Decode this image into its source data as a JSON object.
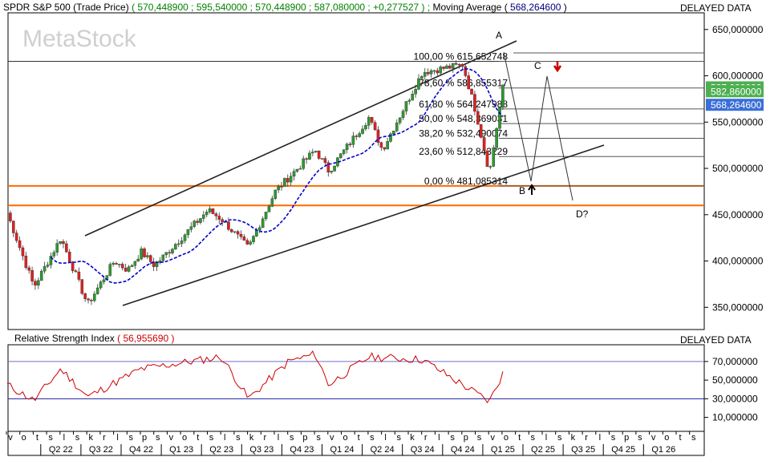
{
  "header": {
    "title": "SPDR S&P 500 (Trade Price)",
    "open": "570,448900",
    "high": "595,540000",
    "low": "570,448900",
    "close": "587,080000",
    "change": "+0,277527",
    "ma_label": "Moving Average",
    "ma_value": "568,264600",
    "delayed": "DELAYED DATA"
  },
  "watermark": "MetaStock",
  "price_axis": {
    "ticks": [
      "650,000000",
      "600,000000",
      "550,000000",
      "500,000000",
      "450,000000",
      "400,000000",
      "350,000000"
    ],
    "tick_values": [
      650,
      600,
      550,
      500,
      450,
      400,
      350
    ],
    "range": [
      326,
      668
    ],
    "badge_close": "587,080000",
    "badge_close_value": 587.08,
    "badge_last": "582,860000",
    "badge_last_value": 582.86,
    "badge_ma": "568,264600",
    "badge_ma_value": 568.2646
  },
  "fib": [
    {
      "label": "100,00 % 615,652748",
      "value": 615.652748
    },
    {
      "label": "78,60 % 586,855317",
      "value": 586.855317
    },
    {
      "label": "61,80 % 564,247988",
      "value": 564.247988
    },
    {
      "label": "50,00 % 548,369031",
      "value": 548.369031
    },
    {
      "label": "38,20 % 532,490074",
      "value": 532.490074
    },
    {
      "label": "23,60 % 512,843229",
      "value": 512.843229
    },
    {
      "label": "0,00 % 481,085314",
      "value": 481.085314
    }
  ],
  "annotations": {
    "A": "A",
    "B": "B",
    "C": "C",
    "D": "D?"
  },
  "horizontal_levels": [
    481.085314,
    460
  ],
  "rsi": {
    "title": "Relative Strength Index",
    "value": "56,955690",
    "delayed": "DELAYED DATA",
    "ticks": [
      "70,000000",
      "50,000000",
      "30,000000",
      "10,000000"
    ],
    "tick_values": [
      70,
      50,
      30,
      10
    ],
    "range": [
      -5,
      88
    ],
    "levels": [
      70,
      30
    ]
  },
  "time_axis": {
    "letters": [
      "v",
      "o",
      "t",
      "s",
      "l",
      "s",
      "k",
      "r",
      "l",
      "s",
      "p",
      "s",
      "v",
      "o",
      "t",
      "s",
      "l",
      "s",
      "k",
      "r",
      "l",
      "s",
      "p",
      "s",
      "v",
      "o",
      "t",
      "s",
      "l",
      "s",
      "k",
      "r",
      "l",
      "s",
      "p",
      "s",
      "v",
      "o",
      "t",
      "s",
      "l",
      "s",
      "k",
      "r",
      "l",
      "s",
      "p",
      "s",
      "v",
      "o",
      "t",
      "s"
    ],
    "quarters": [
      "Q2 22",
      "Q3 22",
      "Q4 22",
      "Q1 23",
      "Q2 23",
      "Q3 23",
      "Q4 23",
      "Q1 24",
      "Q2 24",
      "Q3 24",
      "Q4 24",
      "Q1 25",
      "Q2 25",
      "Q3 25",
      "Q4 25",
      "Q1 26"
    ]
  },
  "chart_data": {
    "type": "candlestick",
    "title": "SPDR S&P 500 (Trade Price)",
    "y_axis_range": [
      326,
      668
    ],
    "anchors": [
      {
        "period": "Apr 2022",
        "price": 452
      },
      {
        "period": "Jun 2022",
        "price": 372
      },
      {
        "period": "Aug 2022",
        "price": 425
      },
      {
        "period": "Oct 2022",
        "price": 353
      },
      {
        "period": "Dec 2022",
        "price": 400
      },
      {
        "period": "Jan 2023",
        "price": 390
      },
      {
        "period": "Feb 2023",
        "price": 410
      },
      {
        "period": "Mar 2023",
        "price": 395
      },
      {
        "period": "Jul 2023",
        "price": 455
      },
      {
        "period": "Aug 2023",
        "price": 445
      },
      {
        "period": "Oct 2023",
        "price": 414
      },
      {
        "period": "Dec 2023",
        "price": 475
      },
      {
        "period": "Mar 2024",
        "price": 520
      },
      {
        "period": "Apr 2024",
        "price": 497
      },
      {
        "period": "Jul 2024",
        "price": 555
      },
      {
        "period": "Aug 2024",
        "price": 520
      },
      {
        "period": "Nov 2024",
        "price": 604
      },
      {
        "period": "Feb 2025",
        "price": 612
      },
      {
        "period": "Mar 2025",
        "price": 560
      },
      {
        "period": "Apr 2025",
        "price": 495
      },
      {
        "period": "May 2025",
        "price": 587
      }
    ],
    "moving_average": "blue dashed line lagging price",
    "rsi_anchors": [
      {
        "period": "Apr 2022",
        "rsi": 45
      },
      {
        "period": "Jun 2022",
        "rsi": 28
      },
      {
        "period": "Aug 2022",
        "rsi": 62
      },
      {
        "period": "Oct 2022",
        "rsi": 32
      },
      {
        "period": "Feb 2023",
        "rsi": 62
      },
      {
        "period": "Aug 2023",
        "rsi": 75
      },
      {
        "period": "Oct 2023",
        "rsi": 30
      },
      {
        "period": "Jan 2024",
        "rsi": 70
      },
      {
        "period": "Mar 2024",
        "rsi": 78
      },
      {
        "period": "Apr 2024",
        "rsi": 45
      },
      {
        "period": "Jul 2024",
        "rsi": 75
      },
      {
        "period": "Nov 2024",
        "rsi": 72
      },
      {
        "period": "Apr 2025",
        "rsi": 27
      },
      {
        "period": "May 2025",
        "rsi": 57
      }
    ]
  }
}
